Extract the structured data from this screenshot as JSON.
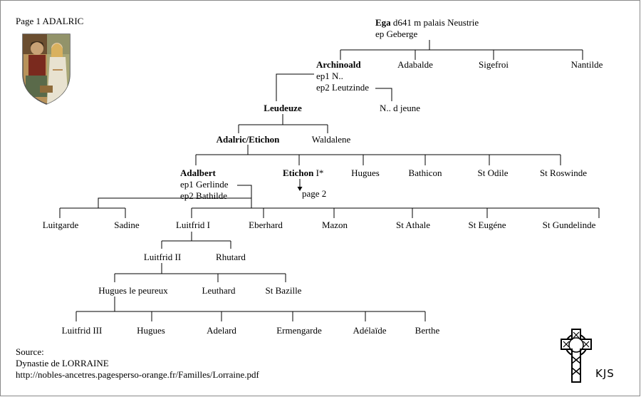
{
  "header": {
    "page_title": "Page 1 ADALRIC"
  },
  "crest": {
    "icon": "heraldic-shield-illustration"
  },
  "people": {
    "ega": {
      "name": "Ega",
      "line1": "d641 m palais Neustrie",
      "line2": "ep Geberge"
    },
    "archinoald": {
      "name": "Archinoald",
      "spouse1": "ep1 N..",
      "spouse2": "ep2 Leutzinde"
    },
    "adabalde": "Adabalde",
    "sigefroi": "Sigefroi",
    "nantilde": "Nantilde",
    "n_child": "N..  d jeune",
    "leudeuze": "Leudeuze",
    "adalric": "Adalric/Etichon",
    "waldalene": "Waldalene",
    "adalbert": {
      "name": "Adalbert",
      "spouse1": "ep1 Gerlinde",
      "spouse2": "ep2 Bathilde"
    },
    "etichon": {
      "name": "Etichon",
      "suffix": " I*",
      "continued": "page 2"
    },
    "hugues_1": "Hugues",
    "bathicon": "Bathicon",
    "st_odile": "St Odile",
    "st_roswinde": "St Roswinde",
    "luitgarde": "Luitgarde",
    "sadine": "Sadine",
    "luitfrid_1": "Luitfrid I",
    "eberhard": "Eberhard",
    "mazon": "Mazon",
    "st_athale": "St Athale",
    "st_eugene": "St Eugéne",
    "st_gundelinde": "St Gundelinde",
    "luitfrid_2": "Luitfrid II",
    "rhutard": "Rhutard",
    "hugues_peureux": "Hugues le peureux",
    "leuthard": "Leuthard",
    "st_bazille": "St Bazille",
    "luitfrid_3": "Luitfrid III",
    "hugues_2": "Hugues",
    "adelard": "Adelard",
    "ermengarde": "Ermengarde",
    "adelaide": "Adélaïde",
    "berthe": "Berthe"
  },
  "source": {
    "label": "Source:",
    "title": "Dynastie de LORRAINE",
    "url": "http://nobles-ancetres.pagesperso-orange.fr/Familles/Lorraine.pdf"
  },
  "signature": {
    "icon": "celtic-cross-icon",
    "initials": "KJS"
  },
  "colors": {
    "line": "#000000",
    "frame": "#8a8a8a"
  }
}
